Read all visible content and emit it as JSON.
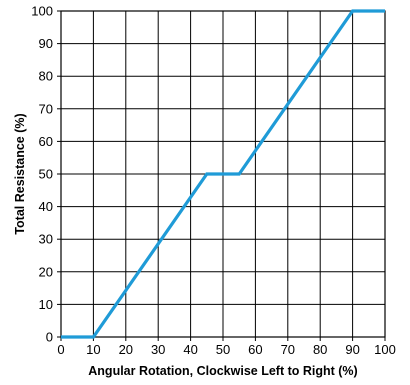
{
  "chart_data": {
    "type": "line",
    "title": "",
    "xlabel": "Angular Rotation, Clockwise Left to Right (%)",
    "ylabel": "Total Resistance (%)",
    "xlim": [
      0,
      100
    ],
    "ylim": [
      0,
      100
    ],
    "xticks": [
      0,
      10,
      20,
      30,
      40,
      50,
      60,
      70,
      80,
      90,
      100
    ],
    "yticks": [
      0,
      10,
      20,
      30,
      40,
      50,
      60,
      70,
      80,
      90,
      100
    ],
    "grid": true,
    "legend": "none",
    "series": [
      {
        "color": "#1f9bd7",
        "points": [
          {
            "x": 0,
            "y": 0
          },
          {
            "x": 10,
            "y": 0
          },
          {
            "x": 45,
            "y": 50
          },
          {
            "x": 55,
            "y": 50
          },
          {
            "x": 90,
            "y": 100
          },
          {
            "x": 100,
            "y": 100
          }
        ]
      }
    ]
  }
}
